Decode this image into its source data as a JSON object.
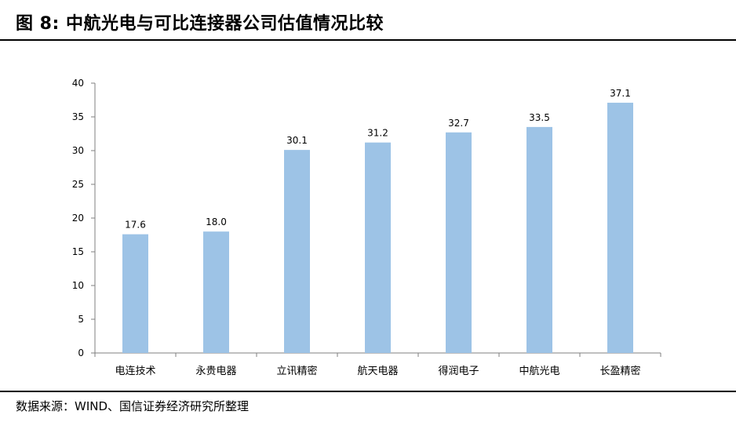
{
  "header": {
    "figure_label": "图 8:",
    "title": "中航光电与可比连接器公司估值情况比较"
  },
  "footer": {
    "source": "数据来源：WIND、国信证券经济研究所整理"
  },
  "colors": {
    "bar": "#9DC3E6",
    "axis": "#7f7f7f",
    "text": "#000000"
  },
  "chart_data": {
    "type": "bar",
    "title": "",
    "xlabel": "",
    "ylabel": "",
    "categories": [
      "电连技术",
      "永贵电器",
      "立讯精密",
      "航天电器",
      "得润电子",
      "中航光电",
      "长盈精密"
    ],
    "values": [
      17.6,
      18.0,
      30.1,
      31.2,
      32.7,
      33.5,
      37.1
    ],
    "value_labels": [
      "17.6",
      "18.0",
      "30.1",
      "31.2",
      "32.7",
      "33.5",
      "37.1"
    ],
    "yticks": [
      0,
      5,
      10,
      15,
      20,
      25,
      30,
      35,
      40
    ],
    "ylim": [
      0,
      40
    ],
    "grid": false,
    "legend": "none"
  }
}
